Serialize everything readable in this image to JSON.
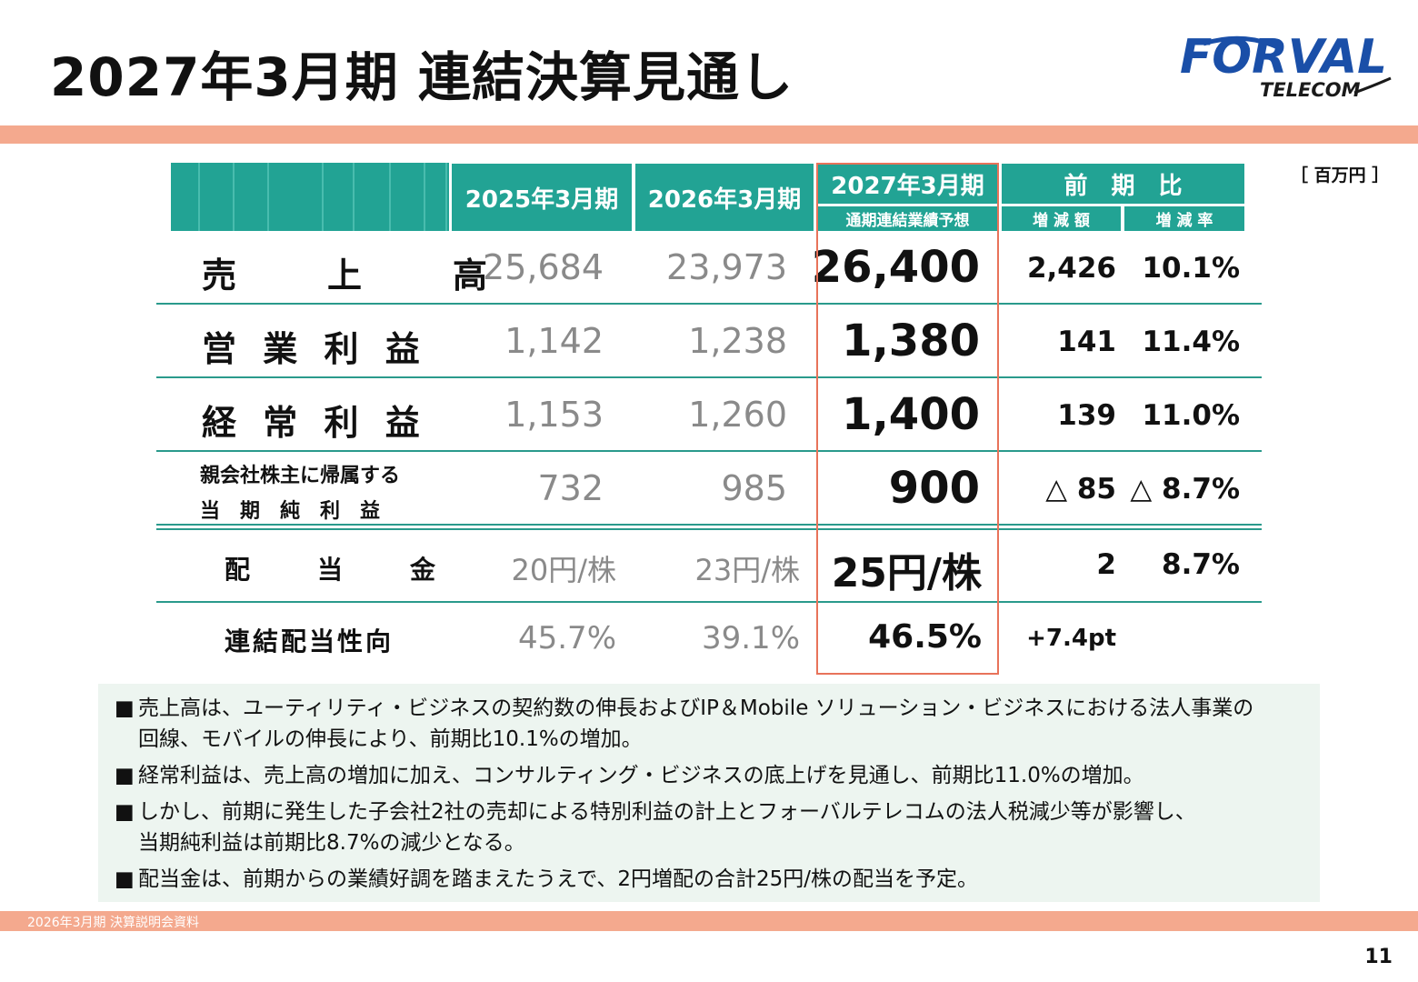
{
  "page_title": "2027年3月期 連結決算見通し",
  "logo": {
    "name": "FORVAL",
    "sub": "TELECOM"
  },
  "unit": "［ 百万円 ］",
  "table": {
    "headers": {
      "col1": "2025年3月期",
      "col2": "2026年3月期",
      "col3": "2027年3月期",
      "col3_sub": "通期連結業績予想",
      "col4": "前　期　比",
      "col4_sub1": "増 減 額",
      "col4_sub2": "増 減 率"
    },
    "rows": [
      {
        "label": "売　　上　　高",
        "v2025": "25,684",
        "v2026": "23,973",
        "v2027": "26,400",
        "diff": "2,426",
        "rate": "10.1%"
      },
      {
        "label": "営 業 利 益",
        "v2025": "1,142",
        "v2026": "1,238",
        "v2027": "1,380",
        "diff": "141",
        "rate": "11.4%"
      },
      {
        "label": "経 常 利 益",
        "v2025": "1,153",
        "v2026": "1,260",
        "v2027": "1,400",
        "diff": "139",
        "rate": "11.0%"
      },
      {
        "label": "親会社株主に帰属する",
        "label2": "当　期　純　利　益",
        "v2025": "732",
        "v2026": "985",
        "v2027": "900",
        "diff": "△ 85",
        "rate": "△ 8.7%"
      },
      {
        "label": "配　　当　　金",
        "v2025": "20円/株",
        "v2026": "23円/株",
        "v2027": "25円/株",
        "diff": "2",
        "rate": "8.7%"
      },
      {
        "label": "連結配当性向",
        "v2025": "45.7%",
        "v2026": "39.1%",
        "v2027": "46.5%",
        "diff": "+7.4pt",
        "rate": ""
      }
    ]
  },
  "notes": [
    {
      "bullet": "■",
      "line1": "売上高は、ユーティリティ・ビジネスの契約数の伸長およびIP＆Mobile ソリューション・ビジネスにおける法人事業の",
      "line2": "回線、モバイルの伸長により、前期比10.1%の増加。"
    },
    {
      "bullet": "■",
      "line1": "経常利益は、売上高の増加に加え、コンサルティング・ビジネスの底上げを見通し、前期比11.0%の増加。",
      "line2": ""
    },
    {
      "bullet": "■",
      "line1": "しかし、前期に発生した子会社2社の売却による特別利益の計上とフォーバルテレコムの法人税減少等が影響し、",
      "line2": "当期純利益は前期比8.7%の減少となる。"
    },
    {
      "bullet": "■",
      "line1": "配当金は、前期からの業績好調を踏まえたうえで、2円増配の合計25円/株の配当を予定。",
      "line2": ""
    }
  ],
  "footer": "2026年3月期 決算説明会資料",
  "page_number": "11",
  "colors": {
    "teal": "#22a394",
    "salmon": "#f4a98e",
    "highlight_border": "#e8735a",
    "logo_blue": "#1a4fa8",
    "notes_bg": "#edf5f0"
  }
}
